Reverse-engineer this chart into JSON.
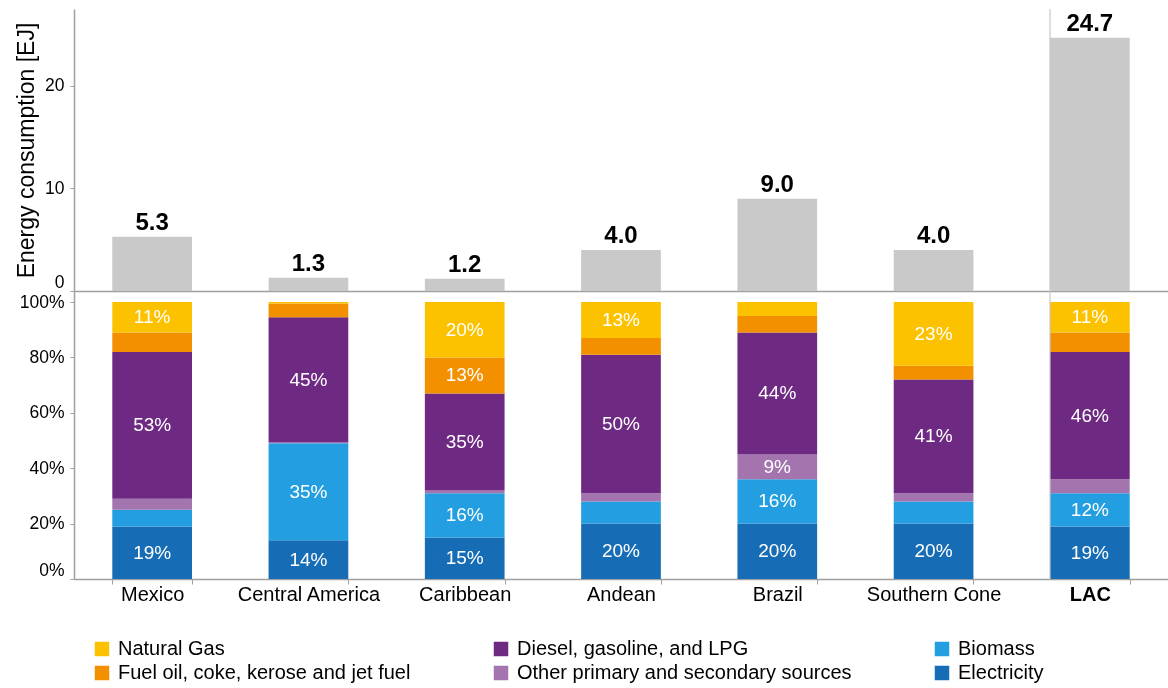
{
  "chart_data": [
    {
      "type": "bar",
      "categories": [
        "Mexico",
        "Central America",
        "Caribbean",
        "Andean",
        "Brazil",
        "Southern Cone",
        "LAC"
      ],
      "values": [
        5.3,
        1.3,
        1.2,
        4.0,
        9.0,
        4.0,
        24.7
      ],
      "value_labels": [
        "5.3",
        "1.3",
        "1.2",
        "4.0",
        "9.0",
        "4.0",
        "24.7"
      ],
      "color": "#c9c9c9",
      "ylabel": "Energy consumption [EJ]",
      "ylim": [
        0,
        27.5
      ],
      "yticks": [
        0,
        10,
        20
      ],
      "tick_labels": "y",
      "ref_lines": [
        {
          "axis": "x",
          "value": "LAC",
          "color": "#c8c8c8"
        }
      ]
    },
    {
      "type": "bar",
      "stacked": true,
      "categories": [
        "Mexico",
        "Central America",
        "Caribbean",
        "Andean",
        "Brazil",
        "Southern Cone",
        "LAC"
      ],
      "series": [
        {
          "name": "Electricity",
          "color": "#176db5",
          "values": [
            19,
            14,
            15,
            20,
            20,
            20,
            19
          ],
          "value_labels": [
            "19%",
            "14%",
            "15%",
            "20%",
            "20%",
            "20%",
            "19%"
          ]
        },
        {
          "name": "Biomass",
          "color": "#239fe1",
          "values": [
            6,
            35,
            16,
            8,
            16,
            8,
            12
          ],
          "value_labels": [
            null,
            "35%",
            "16%",
            null,
            "16%",
            null,
            "12%"
          ]
        },
        {
          "name": "Other primary and secondary sources",
          "color": "#a374ae",
          "values": [
            4,
            0.5,
            1,
            3,
            9,
            3,
            5
          ],
          "value_labels": [
            null,
            null,
            null,
            null,
            "9%",
            null,
            null
          ]
        },
        {
          "name": "Diesel, gasoline, and LPG",
          "color": "#6e2a82",
          "values": [
            53,
            45,
            35,
            50,
            44,
            41,
            46
          ],
          "value_labels": [
            "53%",
            "45%",
            "35%",
            "50%",
            "44%",
            "41%",
            "46%"
          ]
        },
        {
          "name": "Fuel oil, coke, kerose and jet fuel",
          "color": "#f29000",
          "values": [
            7,
            5,
            13,
            6,
            6,
            5,
            7
          ],
          "value_labels": [
            null,
            null,
            "13%",
            null,
            null,
            null,
            null
          ]
        },
        {
          "name": "Natural Gas",
          "color": "#fcc200",
          "values": [
            11,
            0.5,
            20,
            13,
            5,
            23,
            11
          ],
          "value_labels": [
            "11%",
            null,
            "20%",
            "13%",
            null,
            "23%",
            "11%"
          ]
        }
      ],
      "ylim": [
        0,
        104
      ],
      "yticks": [
        {
          "value": 0,
          "label": "0%"
        },
        {
          "value": 20,
          "label": "20%"
        },
        {
          "value": 40,
          "label": "40%"
        },
        {
          "value": 60,
          "label": "60%"
        },
        {
          "value": 80,
          "label": "80%"
        },
        {
          "value": 100,
          "label": "100%"
        }
      ],
      "legend": "bottom",
      "ref_lines": [
        {
          "axis": "x",
          "value": "LAC",
          "color": "#c8c8c8"
        }
      ]
    }
  ]
}
